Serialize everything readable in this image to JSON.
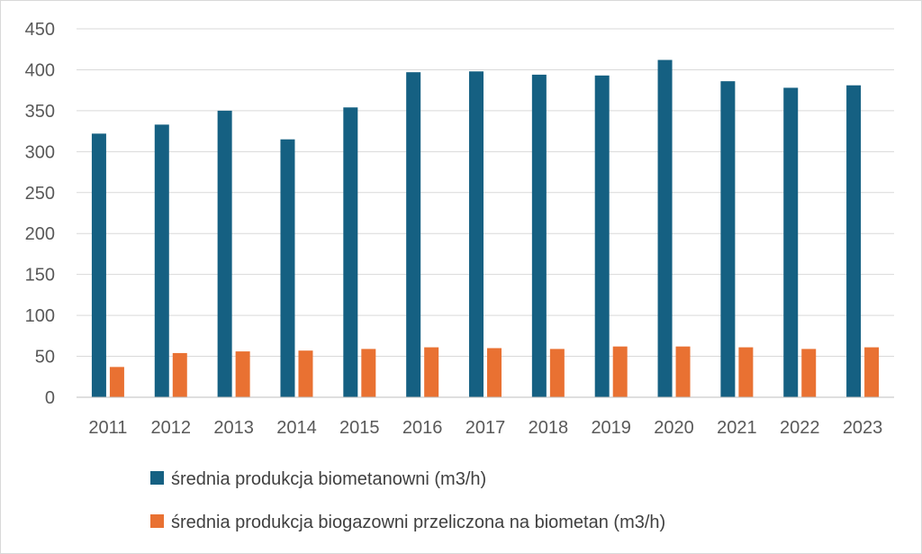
{
  "chart_data": {
    "type": "bar",
    "categories": [
      "2011",
      "2012",
      "2013",
      "2014",
      "2015",
      "2016",
      "2017",
      "2018",
      "2019",
      "2020",
      "2021",
      "2022",
      "2023"
    ],
    "series": [
      {
        "name": "średnia produkcja biometanowni (m3/h)",
        "color": "#156082",
        "values": [
          322,
          333,
          350,
          315,
          354,
          397,
          398,
          394,
          393,
          412,
          386,
          378,
          381
        ]
      },
      {
        "name": "średnia produkcja biogazowni przeliczona na biometan (m3/h)",
        "color": "#E97132",
        "values": [
          37,
          54,
          56,
          57,
          59,
          61,
          60,
          59,
          62,
          62,
          61,
          59,
          61
        ]
      }
    ],
    "ylim": [
      0,
      450
    ],
    "yticks": [
      0,
      50,
      100,
      150,
      200,
      250,
      300,
      350,
      400,
      450
    ],
    "grid": true,
    "legend_position": "bottom"
  }
}
